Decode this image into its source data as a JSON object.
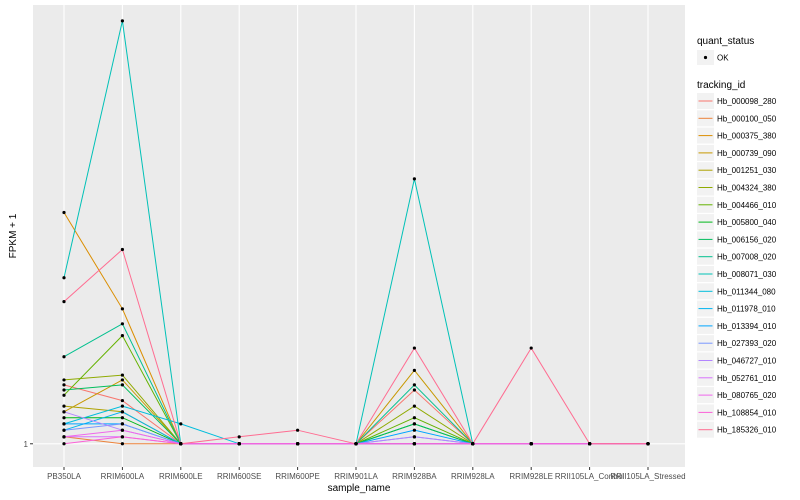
{
  "chart_data": {
    "type": "line",
    "xlabel": "sample_name",
    "ylabel": "FPKM + 1",
    "categories": [
      "PB350LA",
      "RRIM600LA",
      "RRIM600LE",
      "RRIM600SE",
      "RRIM600PE",
      "RRIM901LA",
      "RRIM928BA",
      "RRIM928LA",
      "RRIM928LE",
      "RRII105LA_Control",
      "RRII105LA_Stressed"
    ],
    "y_tick_labels": [
      {
        "value": 1,
        "label": "1"
      }
    ],
    "ylim": [
      0.7,
      16.7
    ],
    "y_scale": "sqrt",
    "series": [
      {
        "name": "Hb_000098_280",
        "color": "#F8766D",
        "values": [
          2.0,
          1.7,
          1.0,
          1.0,
          1.0,
          1.0,
          1.9,
          1.0,
          1.0,
          1.0,
          1.0
        ]
      },
      {
        "name": "Hb_000100_050",
        "color": "#EC8239",
        "values": [
          1.1,
          1.0,
          1.0,
          1.0,
          1.0,
          1.0,
          1.0,
          1.0,
          1.0,
          1.0,
          1.0
        ]
      },
      {
        "name": "Hb_000375_380",
        "color": "#DB8E00",
        "values": [
          6.9,
          3.8,
          1.0,
          1.0,
          1.0,
          1.0,
          1.0,
          1.0,
          1.0,
          1.0,
          1.0
        ]
      },
      {
        "name": "Hb_000739_090",
        "color": "#C79800",
        "values": [
          1.5,
          2.1,
          1.0,
          1.0,
          1.0,
          1.0,
          2.3,
          1.0,
          1.0,
          1.0,
          1.0
        ]
      },
      {
        "name": "Hb_001251_030",
        "color": "#AEA200",
        "values": [
          1.6,
          1.5,
          1.0,
          1.0,
          1.0,
          1.0,
          1.0,
          1.0,
          1.0,
          1.0,
          1.0
        ]
      },
      {
        "name": "Hb_004324_380",
        "color": "#8FAA00",
        "values": [
          2.1,
          2.2,
          1.0,
          1.0,
          1.0,
          1.0,
          1.6,
          1.0,
          1.0,
          1.0,
          1.0
        ]
      },
      {
        "name": "Hb_004466_010",
        "color": "#64B200",
        "values": [
          1.8,
          3.1,
          1.0,
          1.0,
          1.0,
          1.0,
          1.4,
          1.0,
          1.0,
          1.0,
          1.0
        ]
      },
      {
        "name": "Hb_005800_040",
        "color": "#00B81B",
        "values": [
          1.4,
          1.4,
          1.0,
          1.0,
          1.0,
          1.0,
          1.3,
          1.0,
          1.0,
          1.0,
          1.0
        ]
      },
      {
        "name": "Hb_006156_020",
        "color": "#00BD5C",
        "values": [
          1.9,
          2.0,
          1.0,
          1.0,
          1.0,
          1.0,
          1.3,
          1.0,
          1.0,
          1.0,
          1.0
        ]
      },
      {
        "name": "Hb_007008_020",
        "color": "#00C08E",
        "values": [
          2.6,
          3.4,
          1.0,
          1.0,
          1.0,
          1.0,
          2.0,
          1.0,
          1.0,
          1.0,
          1.0
        ]
      },
      {
        "name": "Hb_008071_030",
        "color": "#00C1B7",
        "values": [
          4.7,
          15.8,
          1.0,
          1.0,
          1.0,
          1.0,
          8.2,
          1.0,
          1.0,
          1.0,
          1.0
        ]
      },
      {
        "name": "Hb_011344_080",
        "color": "#00BDDC",
        "values": [
          1.3,
          1.6,
          1.3,
          1.0,
          1.0,
          1.0,
          1.0,
          1.0,
          1.0,
          1.0,
          1.0
        ]
      },
      {
        "name": "Hb_011978_010",
        "color": "#00B4F0",
        "values": [
          1.2,
          1.5,
          1.0,
          1.0,
          1.0,
          1.0,
          1.0,
          1.0,
          1.0,
          1.0,
          1.0
        ]
      },
      {
        "name": "Hb_013394_010",
        "color": "#00A5FF",
        "values": [
          1.3,
          1.3,
          1.0,
          1.0,
          1.0,
          1.0,
          1.2,
          1.0,
          1.0,
          1.0,
          1.0
        ]
      },
      {
        "name": "Hb_027393_020",
        "color": "#7997FF",
        "values": [
          1.2,
          1.3,
          1.0,
          1.0,
          1.0,
          1.0,
          1.1,
          1.0,
          1.0,
          1.0,
          1.0
        ]
      },
      {
        "name": "Hb_046727_010",
        "color": "#B385FF",
        "values": [
          1.5,
          1.2,
          1.0,
          1.0,
          1.0,
          1.0,
          1.1,
          1.0,
          1.0,
          1.0,
          1.0
        ]
      },
      {
        "name": "Hb_052761_010",
        "color": "#D973FC",
        "values": [
          1.1,
          1.1,
          1.0,
          1.0,
          1.0,
          1.0,
          1.0,
          1.0,
          1.0,
          1.0,
          1.0
        ]
      },
      {
        "name": "Hb_080765_020",
        "color": "#EF67EB",
        "values": [
          1.1,
          1.2,
          1.0,
          1.0,
          1.0,
          1.0,
          1.0,
          1.0,
          1.0,
          1.0,
          1.0
        ]
      },
      {
        "name": "Hb_108854_010",
        "color": "#FB61D7",
        "values": [
          1.0,
          1.1,
          1.0,
          1.0,
          1.0,
          1.0,
          1.0,
          1.0,
          1.0,
          1.0,
          1.0
        ]
      },
      {
        "name": "Hb_185326_010",
        "color": "#FF6C91",
        "values": [
          4.0,
          5.6,
          1.0,
          1.1,
          1.2,
          1.0,
          2.8,
          1.0,
          2.8,
          1.0,
          1.0
        ]
      }
    ],
    "point_color": "#000000",
    "grid": true,
    "panel_background": "#EBEBEB",
    "legend_placement": "right",
    "legend": {
      "shape_title": "quant_status",
      "shape_entries": [
        "OK"
      ],
      "color_title": "tracking_id"
    }
  }
}
